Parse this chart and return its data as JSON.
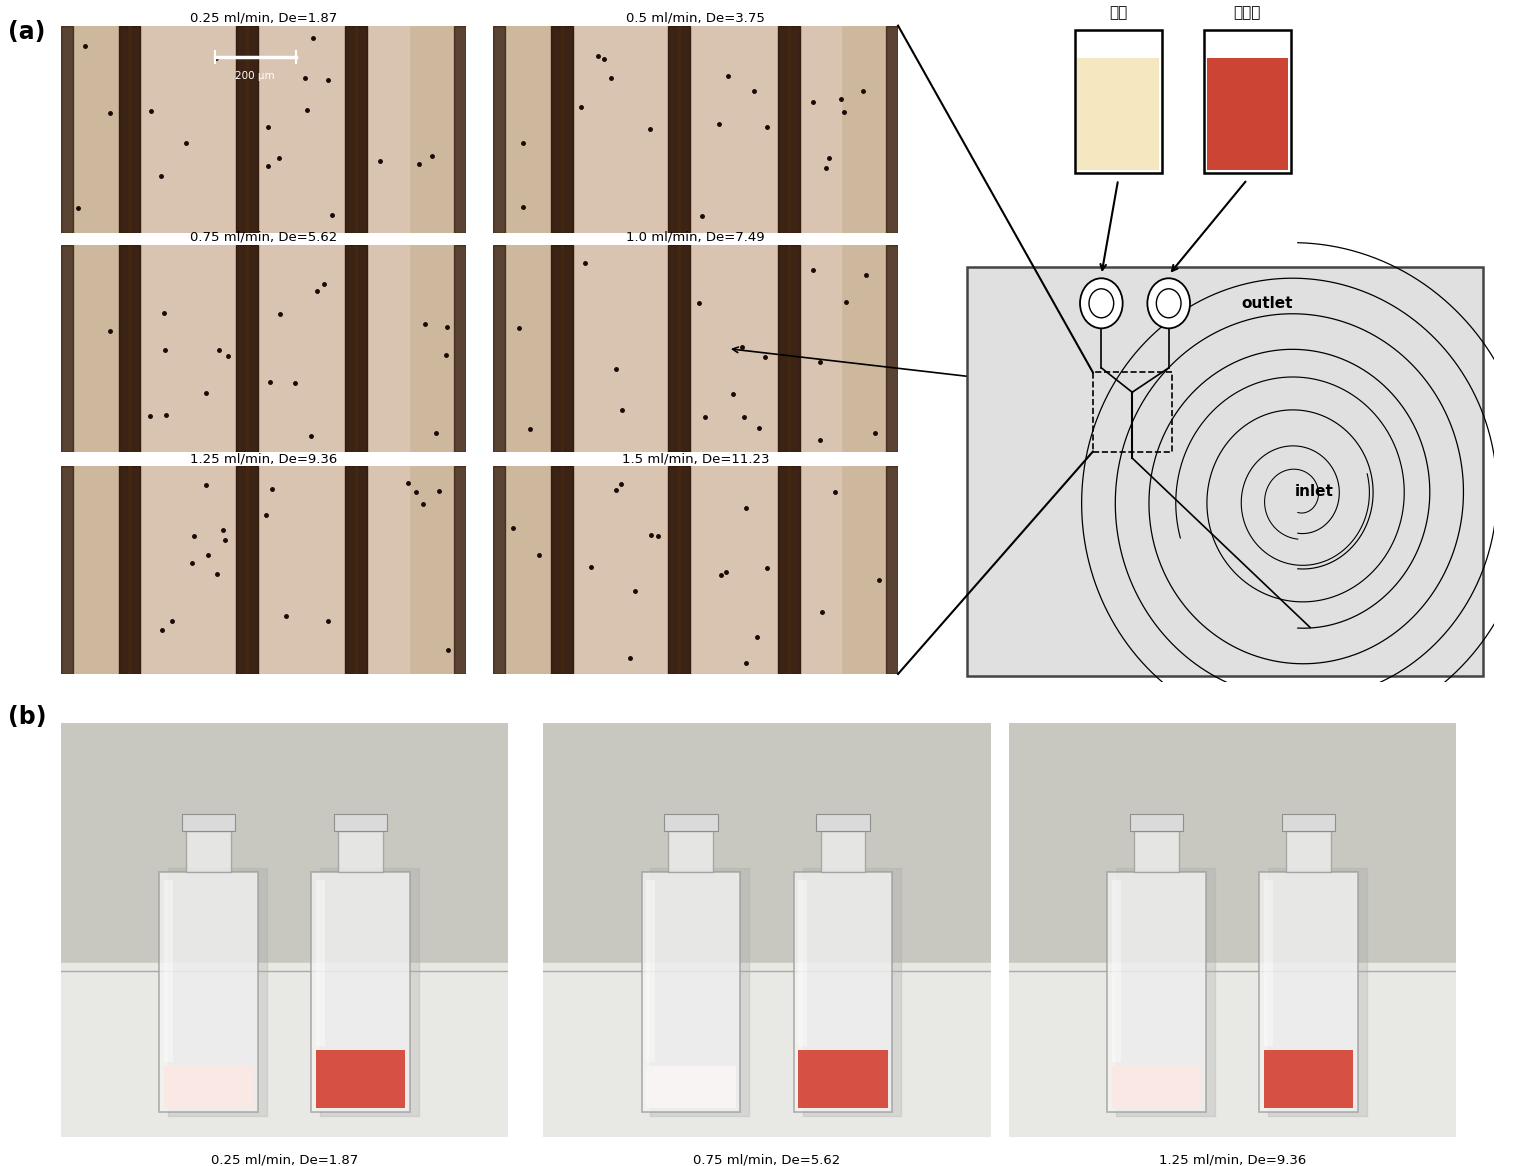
{
  "figure_width": 15.17,
  "figure_height": 11.66,
  "background_color": "#ffffff",
  "panel_a_label": "(a)",
  "panel_b_label": "(b)",
  "micro_titles": [
    "0.25 ml/min, De=1.87",
    "0.5 ml/min, De=3.75",
    "0.75 ml/min, De=5.62",
    "1.0 ml/min, De=7.49",
    "1.25 ml/min, De=9.36",
    "1.5 ml/min, De=11.23"
  ],
  "bottle_titles": [
    "0.25 ml/min, De=1.87",
    "0.75 ml/min, De=5.62",
    "1.25 ml/min, De=9.36"
  ],
  "scale_bar_text": "200 μm",
  "outlet_label": "outlet",
  "inlet_label": "inlet",
  "rbc_label": "적혈구",
  "serum_label": "혁청",
  "micro_bg_color": "#d4bfab",
  "micro_stripe_dark": "#1a0d05",
  "micro_dot_color": "#2a1808",
  "serum_color": "#f5e8c0",
  "rbc_color_dark": "#cc4433",
  "chip_bg_color": "#e0e0e0",
  "chip_border_color": "#333333"
}
